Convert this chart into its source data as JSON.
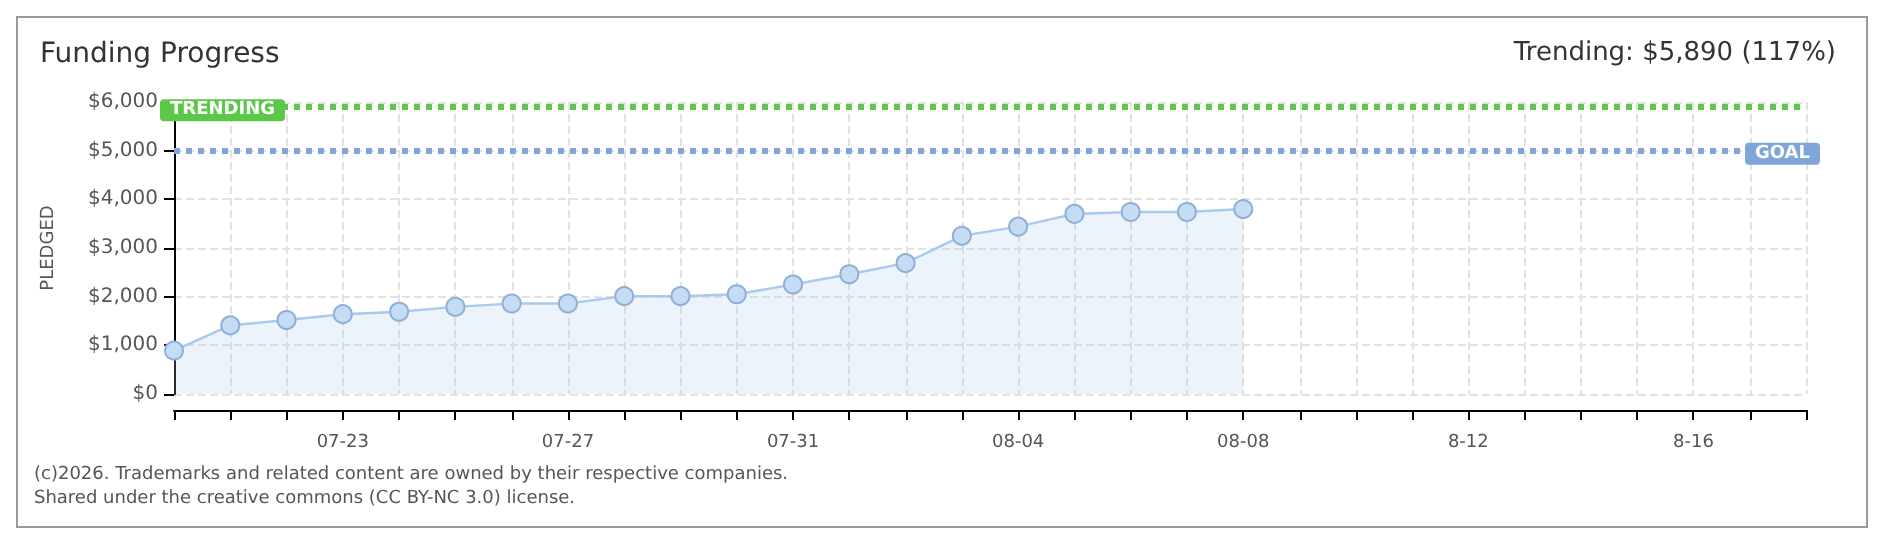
{
  "chart_data": {
    "type": "area",
    "title": "Funding Progress",
    "subtitle": "Trending: $5,890 (117%)",
    "ylabel": "PLEDGED",
    "categories": [
      null,
      null,
      null,
      "07-23",
      null,
      null,
      null,
      "07-27",
      null,
      null,
      null,
      "07-31",
      null,
      null,
      null,
      "08-04",
      null,
      null,
      null,
      "08-08",
      null,
      null,
      null,
      "8-12",
      null,
      null,
      null,
      "8-16",
      null,
      null
    ],
    "series": [
      {
        "color": "#a9c9ee",
        "values": [
          890,
          1410,
          1520,
          1640,
          1690,
          1790,
          1860,
          1860,
          2010,
          2010,
          2050,
          2250,
          2460,
          2690,
          3250,
          3440,
          3700,
          3740,
          3740,
          3800,
          null,
          null,
          null,
          null,
          null,
          null,
          null,
          null,
          null,
          null
        ]
      }
    ],
    "ylim": [
      0,
      6000
    ],
    "yticks": [
      {
        "value": 0,
        "label": "$0"
      },
      {
        "value": 1000,
        "label": "$1,000"
      },
      {
        "value": 2000,
        "label": "$2,000"
      },
      {
        "value": 3000,
        "label": "$3,000"
      },
      {
        "value": 4000,
        "label": "$4,000"
      },
      {
        "value": 5000,
        "label": "$5,000"
      },
      {
        "value": 6000,
        "label": "$6,000"
      }
    ],
    "ref_lines": [
      {
        "axis": "y",
        "value": 5890,
        "label": "TRENDING",
        "color": "#5cc84a",
        "line_style": "dotted"
      },
      {
        "axis": "y",
        "value": 5000,
        "label": "GOAL",
        "color": "#7fa6d9",
        "line_style": "dotted"
      }
    ],
    "grid": true,
    "marker": "circle",
    "annotations": [
      "(c)2026. Trademarks and related content are owned by their respective companies.",
      "Shared under the creative commons (CC BY-NC 3.0) license."
    ]
  }
}
